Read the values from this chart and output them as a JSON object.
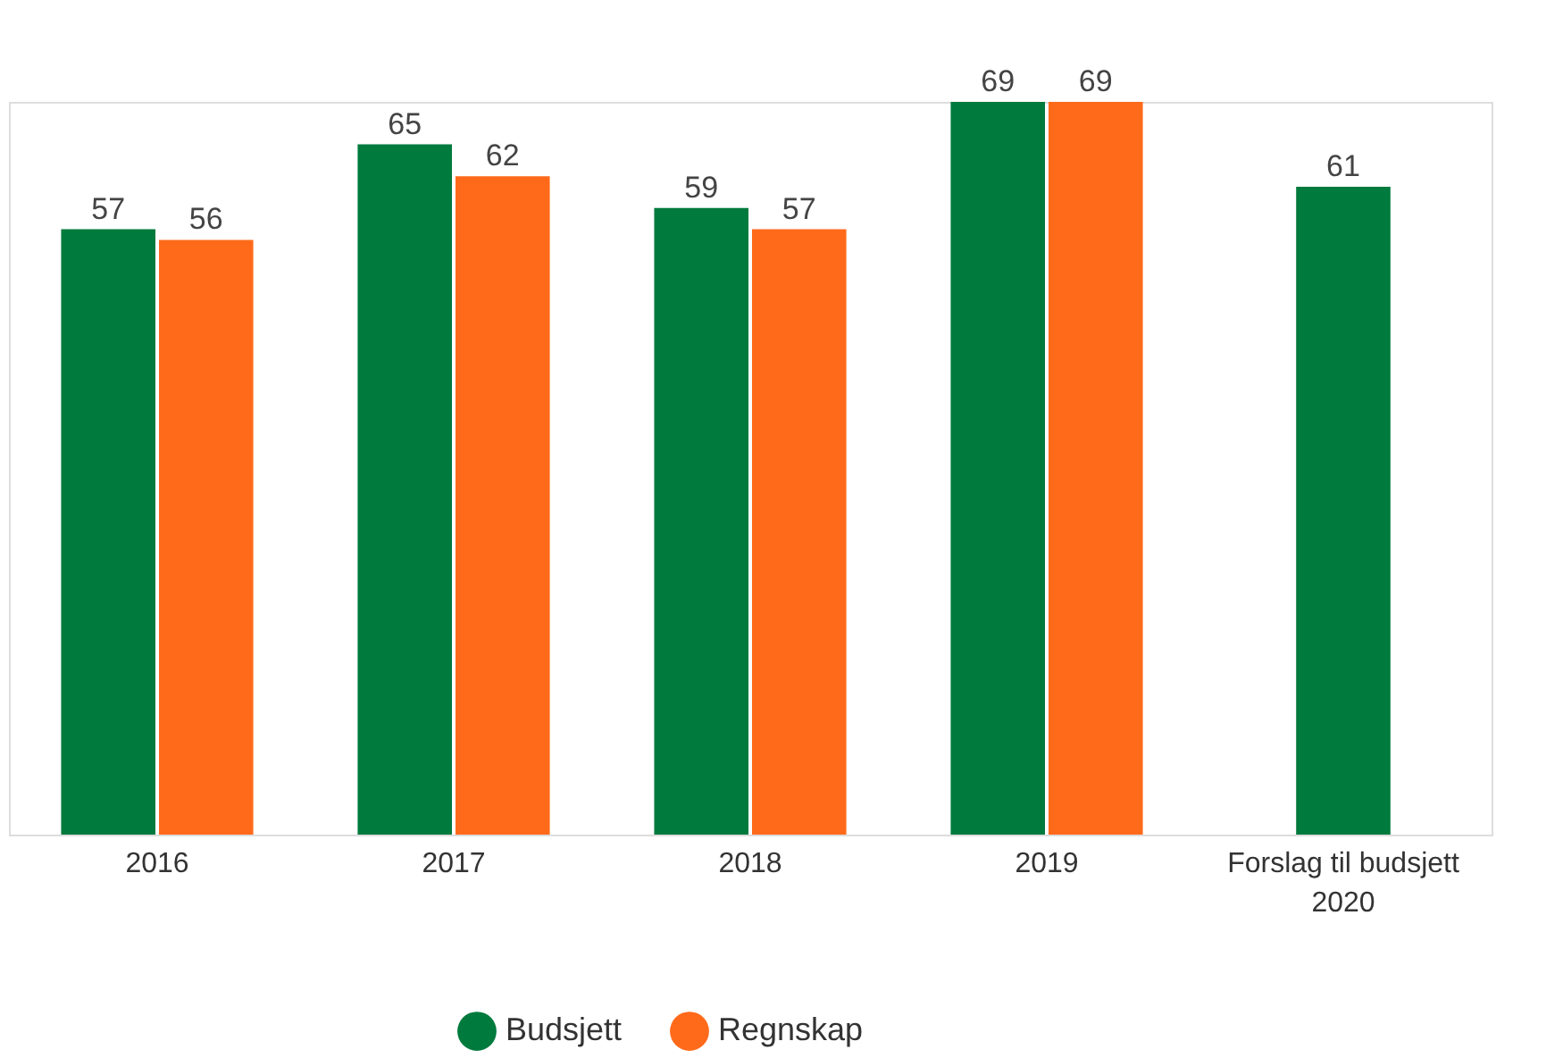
{
  "chart_data": {
    "type": "bar",
    "categories": [
      "2016",
      "2017",
      "2018",
      "2019",
      "Forslag til budsjett 2020"
    ],
    "series": [
      {
        "name": "Budsjett",
        "color": "#007a3d",
        "values": [
          57,
          65,
          59,
          69,
          61
        ]
      },
      {
        "name": "Regnskap",
        "color": "#ff6a1a",
        "values": [
          56,
          62,
          57,
          69,
          null
        ]
      }
    ],
    "data_labels": true,
    "legend": "bottom",
    "tick_labels": "x"
  }
}
